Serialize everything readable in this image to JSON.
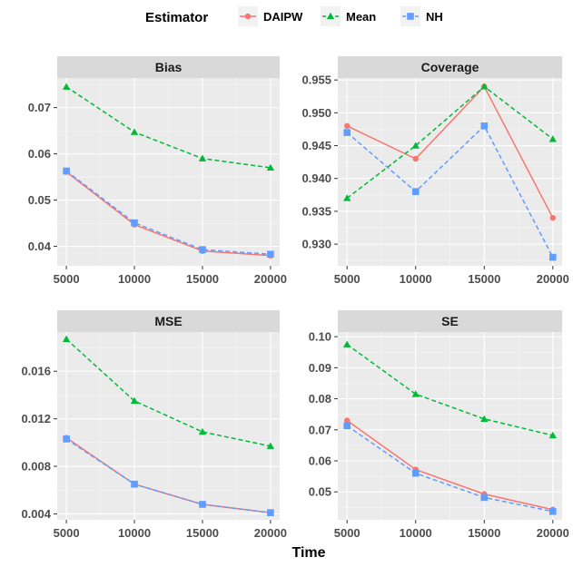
{
  "legend": {
    "title": "Estimator",
    "entries": [
      {
        "label": "DAIPW",
        "color": "#F8766D",
        "shape": "circle",
        "dash": "solid"
      },
      {
        "label": "Mean",
        "color": "#00BA38",
        "shape": "triangle",
        "dash": "dashed"
      },
      {
        "label": "NH",
        "color": "#619CFF",
        "shape": "square",
        "dash": "dashed"
      }
    ]
  },
  "xlabel": "Time",
  "chart_data": [
    {
      "type": "line",
      "title": "Bias",
      "x": [
        5000,
        10000,
        15000,
        20000
      ],
      "x_ticks": [
        "5000",
        "10000",
        "15000",
        "20000"
      ],
      "y_ticks": [
        0.04,
        0.05,
        0.06,
        0.07
      ],
      "y_tick_labels": [
        "0.04",
        "0.05",
        "0.06",
        "0.07"
      ],
      "ylim": [
        0.0358,
        0.0764
      ],
      "series": [
        {
          "name": "DAIPW",
          "values": [
            0.0561,
            0.0447,
            0.039,
            0.038
          ]
        },
        {
          "name": "Mean",
          "values": [
            0.0745,
            0.0647,
            0.059,
            0.057
          ]
        },
        {
          "name": "NH",
          "values": [
            0.0563,
            0.0451,
            0.0393,
            0.0383
          ]
        }
      ]
    },
    {
      "type": "line",
      "title": "Coverage",
      "x": [
        5000,
        10000,
        15000,
        20000
      ],
      "x_ticks": [
        "5000",
        "10000",
        "15000",
        "20000"
      ],
      "y_ticks": [
        0.93,
        0.935,
        0.94,
        0.945,
        0.95,
        0.955
      ],
      "y_tick_labels": [
        "0.930",
        "0.935",
        "0.940",
        "0.945",
        "0.950",
        "0.955"
      ],
      "ylim": [
        0.9267,
        0.9553
      ],
      "series": [
        {
          "name": "DAIPW",
          "values": [
            0.948,
            0.943,
            0.954,
            0.934
          ]
        },
        {
          "name": "Mean",
          "values": [
            0.937,
            0.945,
            0.954,
            0.946
          ]
        },
        {
          "name": "NH",
          "values": [
            0.947,
            0.938,
            0.948,
            0.928
          ]
        }
      ]
    },
    {
      "type": "line",
      "title": "MSE",
      "x": [
        5000,
        10000,
        15000,
        20000
      ],
      "x_ticks": [
        "5000",
        "10000",
        "15000",
        "20000"
      ],
      "y_ticks": [
        0.004,
        0.008,
        0.012,
        0.016
      ],
      "y_tick_labels": [
        "0.004",
        "0.008",
        "0.012",
        "0.016"
      ],
      "ylim": [
        0.0035,
        0.0193
      ],
      "series": [
        {
          "name": "DAIPW",
          "values": [
            0.0104,
            0.0065,
            0.0048,
            0.0041
          ]
        },
        {
          "name": "Mean",
          "values": [
            0.0187,
            0.0135,
            0.0109,
            0.0097
          ]
        },
        {
          "name": "NH",
          "values": [
            0.0103,
            0.0065,
            0.0048,
            0.0041
          ]
        }
      ]
    },
    {
      "type": "line",
      "title": "SE",
      "x": [
        5000,
        10000,
        15000,
        20000
      ],
      "x_ticks": [
        "5000",
        "10000",
        "15000",
        "20000"
      ],
      "y_ticks": [
        0.05,
        0.06,
        0.07,
        0.08,
        0.09,
        0.1
      ],
      "y_tick_labels": [
        "0.05",
        "0.06",
        "0.07",
        "0.08",
        "0.09",
        "0.10"
      ],
      "ylim": [
        0.041,
        0.1015
      ],
      "series": [
        {
          "name": "DAIPW",
          "values": [
            0.073,
            0.0572,
            0.0493,
            0.0443
          ]
        },
        {
          "name": "Mean",
          "values": [
            0.0975,
            0.0815,
            0.0735,
            0.0682
          ]
        },
        {
          "name": "NH",
          "values": [
            0.0713,
            0.056,
            0.0482,
            0.0437
          ]
        }
      ]
    }
  ]
}
